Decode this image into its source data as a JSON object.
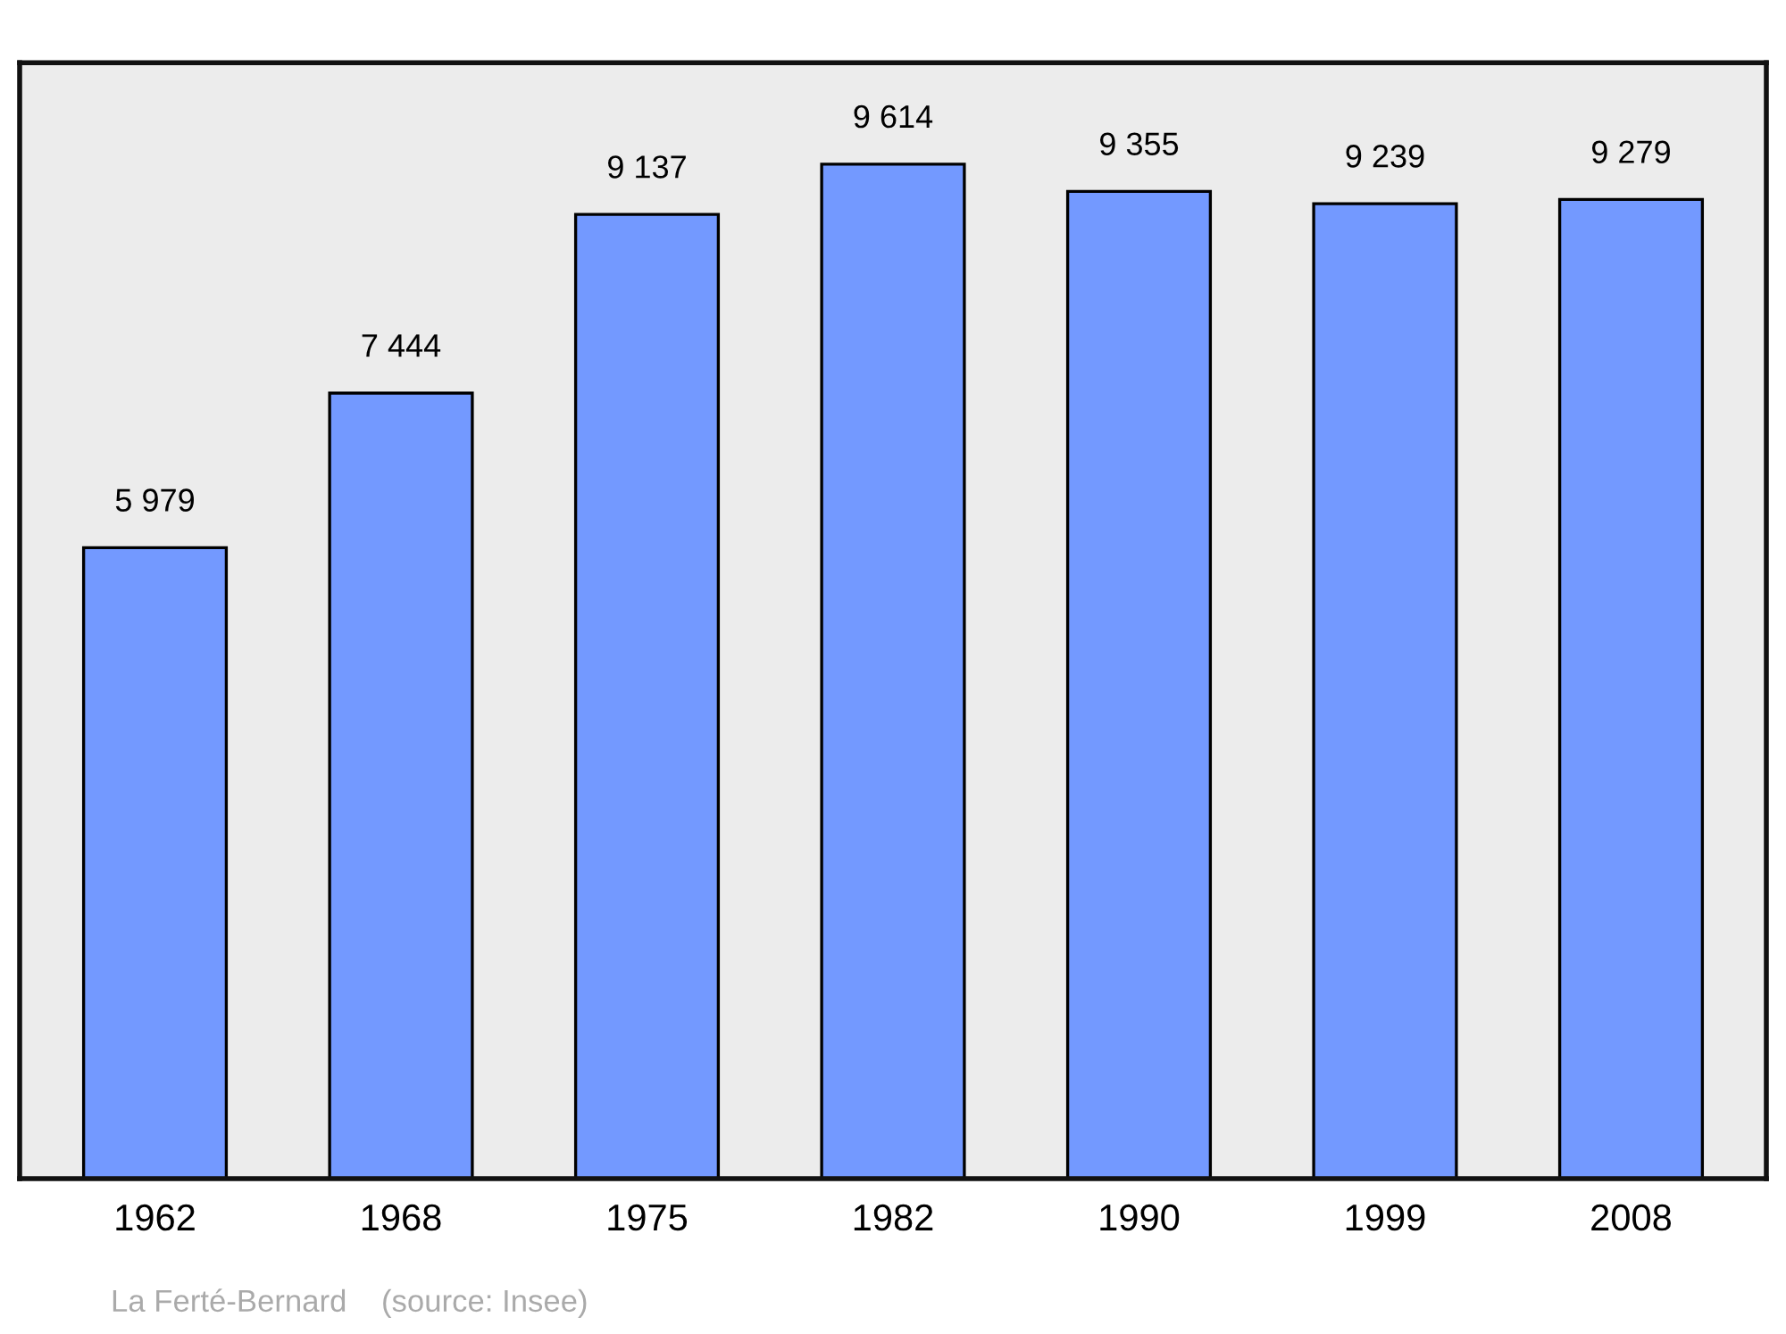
{
  "chart_data": {
    "type": "bar",
    "categories": [
      "1962",
      "1968",
      "1975",
      "1982",
      "1990",
      "1999",
      "2008"
    ],
    "values": [
      5979,
      7444,
      9137,
      9614,
      9355,
      9239,
      9279
    ],
    "value_labels": [
      "5 979",
      "7 444",
      "9 137",
      "9 614",
      "9 355",
      "9 239",
      "9 279"
    ],
    "color": "#7399ff",
    "grid": false,
    "legend": false,
    "annotations": [
      "La Ferté-Bernard    (source: Insee)"
    ]
  }
}
